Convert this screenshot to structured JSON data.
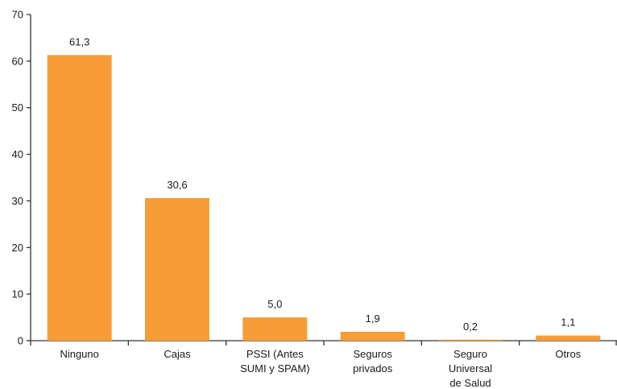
{
  "chart_data": {
    "type": "bar",
    "categories": [
      "Ninguno",
      "Cajas",
      "PSSI (Antes SUMI y SPAM)",
      "Seguros privados",
      "Seguro Universal de Salud",
      "Otros"
    ],
    "category_label_lines": [
      [
        "Ninguno"
      ],
      [
        "Cajas"
      ],
      [
        "PSSI (Antes",
        "SUMI y SPAM)"
      ],
      [
        "Seguros",
        "privados"
      ],
      [
        "Seguro",
        "Universal",
        "de Salud"
      ],
      [
        "Otros"
      ]
    ],
    "values": [
      61.3,
      30.6,
      5.0,
      1.9,
      0.2,
      1.1
    ],
    "value_labels": [
      "61,3",
      "30,6",
      "5,0",
      "1,9",
      "0,2",
      "1,1"
    ],
    "yticks": [
      "0",
      "10",
      "20",
      "30",
      "40",
      "50",
      "60",
      "70"
    ],
    "ylim": [
      0,
      70
    ],
    "grid": false,
    "bar_color": "#F79C38",
    "axis_color": "#333333",
    "title": "",
    "xlabel": "",
    "ylabel": ""
  }
}
